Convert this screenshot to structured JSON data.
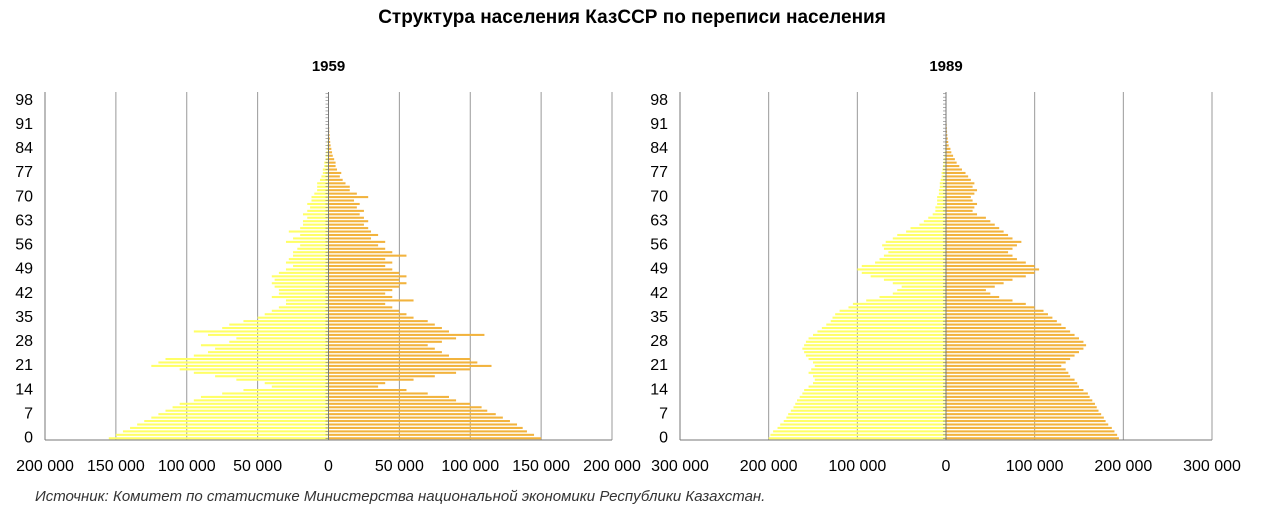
{
  "title": "Структура населения КазССР по переписи населения",
  "source": "Источник: Комитет по статистике Министерства национальной экономики Республики Казахстан.",
  "chart_data": [
    {
      "type": "pyramid",
      "title": "1959",
      "categories": [
        0,
        null,
        null,
        null,
        null,
        null,
        null,
        7,
        null,
        null,
        null,
        null,
        null,
        null,
        14,
        null,
        null,
        null,
        null,
        null,
        null,
        21,
        null,
        null,
        null,
        null,
        null,
        null,
        28,
        null,
        null,
        null,
        null,
        null,
        null,
        35,
        null,
        null,
        null,
        null,
        null,
        null,
        42,
        null,
        null,
        null,
        null,
        null,
        null,
        49,
        null,
        null,
        null,
        null,
        null,
        null,
        56,
        null,
        null,
        null,
        null,
        null,
        null,
        63,
        null,
        null,
        null,
        null,
        null,
        null,
        70,
        null,
        null,
        null,
        null,
        null,
        null,
        77,
        null,
        null,
        null,
        null,
        null,
        null,
        84,
        null,
        null,
        null,
        null,
        null,
        null,
        91,
        null,
        null,
        null,
        null,
        null,
        null,
        98,
        null,
        null
      ],
      "xlim": [
        -200000,
        200000
      ],
      "xticks": [
        {
          "value": -200000,
          "label": "200 000"
        },
        {
          "value": -150000,
          "label": "150 000"
        },
        {
          "value": -100000,
          "label": "100 000"
        },
        {
          "value": -50000,
          "label": "50 000"
        },
        0,
        {
          "value": 50000,
          "label": "50 000"
        },
        {
          "value": 100000,
          "label": "100 000"
        },
        {
          "value": 150000,
          "label": "150 000"
        },
        {
          "value": 200000,
          "label": "200 000"
        }
      ],
      "grid": true,
      "series": [
        {
          "color": "#ffff66",
          "values": [
            -155000,
            -150000,
            -145000,
            -140000,
            -135000,
            -130000,
            -125000,
            -120000,
            -115000,
            -110000,
            -105000,
            -95000,
            -90000,
            -75000,
            -60000,
            -40000,
            -45000,
            -65000,
            -80000,
            -95000,
            -105000,
            -125000,
            -120000,
            -115000,
            -95000,
            -85000,
            -80000,
            -90000,
            -70000,
            -65000,
            -85000,
            -95000,
            -75000,
            -70000,
            -60000,
            -50000,
            -45000,
            -40000,
            -35000,
            -30000,
            -30000,
            -40000,
            -35000,
            -35000,
            -38000,
            -40000,
            -38000,
            -40000,
            -35000,
            -30000,
            -25000,
            -30000,
            -28000,
            -25000,
            -25000,
            -22000,
            -20000,
            -30000,
            -25000,
            -20000,
            -28000,
            -20000,
            -18000,
            -18000,
            -15000,
            -18000,
            -15000,
            -13000,
            -15000,
            -12000,
            -12000,
            -10000,
            -8000,
            -8000,
            -8000,
            -6000,
            -5000,
            -4000,
            -4000,
            -3000,
            -3000,
            -2000,
            -2000,
            -1500,
            -1200,
            -1000,
            -800,
            -600,
            -500,
            -400,
            -300,
            -200,
            -200,
            -150,
            -100,
            -100,
            -80,
            -60,
            -50,
            -50,
            -50
          ]
        },
        {
          "color": "#f2b33d",
          "values": [
            150000,
            145000,
            140000,
            137000,
            133000,
            128000,
            123000,
            118000,
            112000,
            108000,
            100000,
            90000,
            85000,
            70000,
            55000,
            35000,
            40000,
            60000,
            75000,
            90000,
            100000,
            115000,
            105000,
            100000,
            85000,
            80000,
            75000,
            70000,
            80000,
            90000,
            110000,
            85000,
            80000,
            75000,
            70000,
            60000,
            55000,
            50000,
            45000,
            40000,
            60000,
            45000,
            40000,
            45000,
            50000,
            55000,
            50000,
            55000,
            50000,
            45000,
            40000,
            45000,
            40000,
            55000,
            45000,
            40000,
            35000,
            40000,
            30000,
            35000,
            30000,
            28000,
            25000,
            28000,
            25000,
            22000,
            25000,
            20000,
            22000,
            18000,
            28000,
            20000,
            15000,
            15000,
            12000,
            10000,
            8000,
            9000,
            6000,
            5000,
            5000,
            4000,
            3000,
            2500,
            2000,
            1500,
            1200,
            1000,
            800,
            600,
            500,
            400,
            350,
            300,
            250,
            200,
            150,
            120,
            100,
            80,
            50
          ]
        }
      ]
    },
    {
      "type": "pyramid",
      "title": "1989",
      "categories": [
        0,
        null,
        null,
        null,
        null,
        null,
        null,
        7,
        null,
        null,
        null,
        null,
        null,
        null,
        14,
        null,
        null,
        null,
        null,
        null,
        null,
        21,
        null,
        null,
        null,
        null,
        null,
        null,
        28,
        null,
        null,
        null,
        null,
        null,
        null,
        35,
        null,
        null,
        null,
        null,
        null,
        null,
        42,
        null,
        null,
        null,
        null,
        null,
        null,
        49,
        null,
        null,
        null,
        null,
        null,
        null,
        56,
        null,
        null,
        null,
        null,
        null,
        null,
        63,
        null,
        null,
        null,
        null,
        null,
        null,
        70,
        null,
        null,
        null,
        null,
        null,
        null,
        77,
        null,
        null,
        null,
        null,
        null,
        null,
        84,
        null,
        null,
        null,
        null,
        null,
        null,
        91,
        null,
        null,
        null,
        null,
        null,
        null,
        98,
        null,
        null
      ],
      "xlim": [
        -300000,
        300000
      ],
      "xticks": [
        {
          "value": -300000,
          "label": "300 000"
        },
        {
          "value": -200000,
          "label": "200 000"
        },
        {
          "value": -100000,
          "label": "100 000"
        },
        0,
        {
          "value": 100000,
          "label": "100 000"
        },
        {
          "value": 200000,
          "label": "200 000"
        },
        {
          "value": 300000,
          "label": "300 000"
        }
      ],
      "grid": true,
      "series": [
        {
          "color": "#ffff66",
          "values": [
            -200000,
            -198000,
            -195000,
            -190000,
            -187000,
            -183000,
            -180000,
            -178000,
            -175000,
            -172000,
            -170000,
            -168000,
            -165000,
            -162000,
            -160000,
            -155000,
            -150000,
            -148000,
            -150000,
            -155000,
            -152000,
            -148000,
            -150000,
            -155000,
            -158000,
            -160000,
            -162000,
            -160000,
            -158000,
            -155000,
            -150000,
            -145000,
            -140000,
            -135000,
            -130000,
            -128000,
            -125000,
            -120000,
            -110000,
            -105000,
            -90000,
            -75000,
            -60000,
            -55000,
            -50000,
            -60000,
            -70000,
            -85000,
            -95000,
            -100000,
            -95000,
            -80000,
            -75000,
            -70000,
            -65000,
            -70000,
            -72000,
            -68000,
            -60000,
            -55000,
            -45000,
            -40000,
            -30000,
            -25000,
            -20000,
            -15000,
            -12000,
            -12000,
            -10000,
            -10000,
            -10000,
            -8000,
            -8000,
            -7000,
            -7000,
            -6000,
            -5000,
            -5000,
            -4000,
            -3500,
            -3000,
            -2500,
            -2000,
            -1500,
            -1200,
            -1000,
            -800,
            -600,
            -500,
            -400,
            -300,
            -250,
            -200,
            -150,
            -120,
            -100,
            -80,
            -60,
            -50,
            -50,
            -50
          ]
        },
        {
          "color": "#f2b33d",
          "values": [
            195000,
            193000,
            190000,
            187000,
            183000,
            180000,
            178000,
            175000,
            172000,
            170000,
            168000,
            165000,
            162000,
            160000,
            155000,
            150000,
            148000,
            145000,
            140000,
            138000,
            135000,
            130000,
            135000,
            140000,
            145000,
            150000,
            155000,
            158000,
            155000,
            150000,
            145000,
            140000,
            135000,
            130000,
            125000,
            120000,
            115000,
            110000,
            100000,
            90000,
            75000,
            60000,
            50000,
            45000,
            55000,
            65000,
            75000,
            90000,
            100000,
            105000,
            100000,
            90000,
            80000,
            75000,
            70000,
            75000,
            80000,
            85000,
            75000,
            70000,
            65000,
            60000,
            55000,
            50000,
            45000,
            35000,
            30000,
            32000,
            35000,
            30000,
            28000,
            32000,
            35000,
            30000,
            32000,
            28000,
            25000,
            22000,
            18000,
            15000,
            12000,
            10000,
            8000,
            6000,
            5000,
            3000,
            2500,
            2000,
            1500,
            1200,
            1000,
            800,
            600,
            500,
            400,
            300,
            200,
            150,
            100,
            100,
            50
          ]
        }
      ]
    }
  ]
}
